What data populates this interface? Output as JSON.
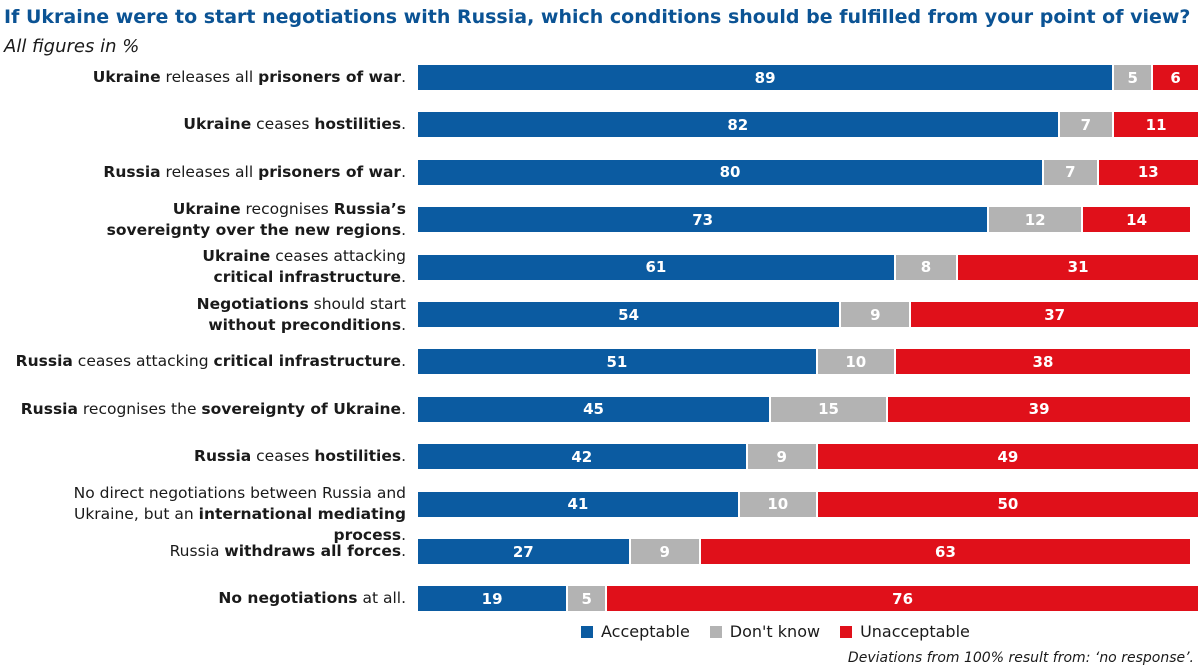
{
  "chart_data": {
    "type": "bar",
    "orientation": "horizontal",
    "stacked": true,
    "title": "If Ukraine were to start negotiations with Russia, which conditions should be fulfilled from your point of view?",
    "subtitle": "All figures in %",
    "footnote": "Deviations from 100% result from: ‘no response’.",
    "legend_position": "bottom",
    "grid": false,
    "xlim": [
      0,
      100
    ],
    "colors": {
      "acceptable": "#0b5ba1",
      "dont_know": "#b3b3b3",
      "unacceptable": "#e0101a"
    },
    "series": [
      {
        "key": "acceptable",
        "name": "Acceptable",
        "color": "#0b5ba1",
        "values": [
          89,
          82,
          80,
          73,
          61,
          54,
          51,
          45,
          42,
          41,
          27,
          19
        ]
      },
      {
        "key": "dont_know",
        "name": "Don't know",
        "color": "#b3b3b3",
        "values": [
          5,
          7,
          7,
          12,
          8,
          9,
          10,
          15,
          9,
          10,
          9,
          5
        ]
      },
      {
        "key": "unacceptable",
        "name": "Unacceptable",
        "color": "#e0101a",
        "values": [
          6,
          11,
          13,
          14,
          31,
          37,
          38,
          39,
          49,
          50,
          63,
          76
        ]
      }
    ],
    "categories": [
      [
        [
          {
            "t": "Ukraine",
            "b": true
          },
          {
            "t": " releases all ",
            "b": false
          },
          {
            "t": "prisoners of war",
            "b": true
          },
          {
            "t": ".",
            "b": false
          }
        ]
      ],
      [
        [
          {
            "t": "Ukraine",
            "b": true
          },
          {
            "t": " ceases ",
            "b": false
          },
          {
            "t": "hostilities",
            "b": true
          },
          {
            "t": ".",
            "b": false
          }
        ]
      ],
      [
        [
          {
            "t": "Russia",
            "b": true
          },
          {
            "t": " releases all ",
            "b": false
          },
          {
            "t": "prisoners of war",
            "b": true
          },
          {
            "t": ".",
            "b": false
          }
        ]
      ],
      [
        [
          {
            "t": "Ukraine",
            "b": true
          },
          {
            "t": " recognises ",
            "b": false
          },
          {
            "t": "Russia’s",
            "b": true
          }
        ],
        [
          {
            "t": "sovereignty over the new regions",
            "b": true
          },
          {
            "t": ".",
            "b": false
          }
        ]
      ],
      [
        [
          {
            "t": "Ukraine",
            "b": true
          },
          {
            "t": " ceases attacking",
            "b": false
          }
        ],
        [
          {
            "t": "critical infrastructure",
            "b": true
          },
          {
            "t": ".",
            "b": false
          }
        ]
      ],
      [
        [
          {
            "t": "Negotiations",
            "b": true
          },
          {
            "t": " should start",
            "b": false
          }
        ],
        [
          {
            "t": "without preconditions",
            "b": true
          },
          {
            "t": ".",
            "b": false
          }
        ]
      ],
      [
        [
          {
            "t": "Russia",
            "b": true
          },
          {
            "t": " ceases attacking ",
            "b": false
          },
          {
            "t": "critical infrastructure",
            "b": true
          },
          {
            "t": ".",
            "b": false
          }
        ]
      ],
      [
        [
          {
            "t": "Russia",
            "b": true
          },
          {
            "t": " recognises the ",
            "b": false
          },
          {
            "t": "sovereignty of Ukraine",
            "b": true
          },
          {
            "t": ".",
            "b": false
          }
        ]
      ],
      [
        [
          {
            "t": "Russia",
            "b": true
          },
          {
            "t": " ceases ",
            "b": false
          },
          {
            "t": "hostilities",
            "b": true
          },
          {
            "t": ".",
            "b": false
          }
        ]
      ],
      [
        [
          {
            "t": "No direct negotiations between Russia and",
            "b": false
          }
        ],
        [
          {
            "t": "Ukraine, but an ",
            "b": false
          },
          {
            "t": "international mediating process",
            "b": true
          },
          {
            "t": ".",
            "b": false
          }
        ]
      ],
      [
        [
          {
            "t": "Russia ",
            "b": false
          },
          {
            "t": "withdraws all forces",
            "b": true
          },
          {
            "t": ".",
            "b": false
          }
        ]
      ],
      [
        [
          {
            "t": "No negotiations",
            "b": true
          },
          {
            "t": " at all.",
            "b": false
          }
        ]
      ]
    ]
  }
}
